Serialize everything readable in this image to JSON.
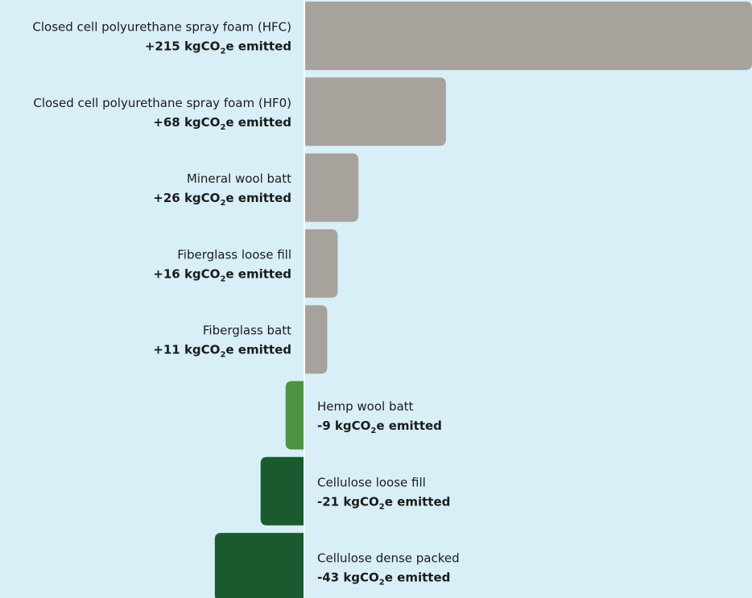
{
  "chart_data": {
    "type": "bar",
    "orientation": "horizontal",
    "unit_prefix": "kgCO",
    "unit_subscript": "2",
    "unit_suffix": "e emitted",
    "colors": {
      "positive": "#a8a29d",
      "negative_small": "#4a9443",
      "negative": "#1b5a2e",
      "background": "#d8eff8",
      "axis": "#ffffff"
    },
    "categories": [
      "Closed cell polyurethane spray foam (HFC)",
      "Closed cell polyurethane spray foam (HF0)",
      "Mineral wool batt",
      "Fiberglass loose fill",
      "Fiberglass batt",
      "Hemp wool batt",
      "Cellulose loose fill",
      "Cellulose dense packed"
    ],
    "values": [
      215,
      68,
      26,
      16,
      11,
      -9,
      -21,
      -43
    ],
    "value_labels": [
      "+215",
      "+68",
      "+26",
      "+16",
      "+11",
      "-9",
      "-21",
      "-43"
    ],
    "bar_colors": [
      "positive",
      "positive",
      "positive",
      "positive",
      "positive",
      "negative_small",
      "negative",
      "negative"
    ]
  }
}
